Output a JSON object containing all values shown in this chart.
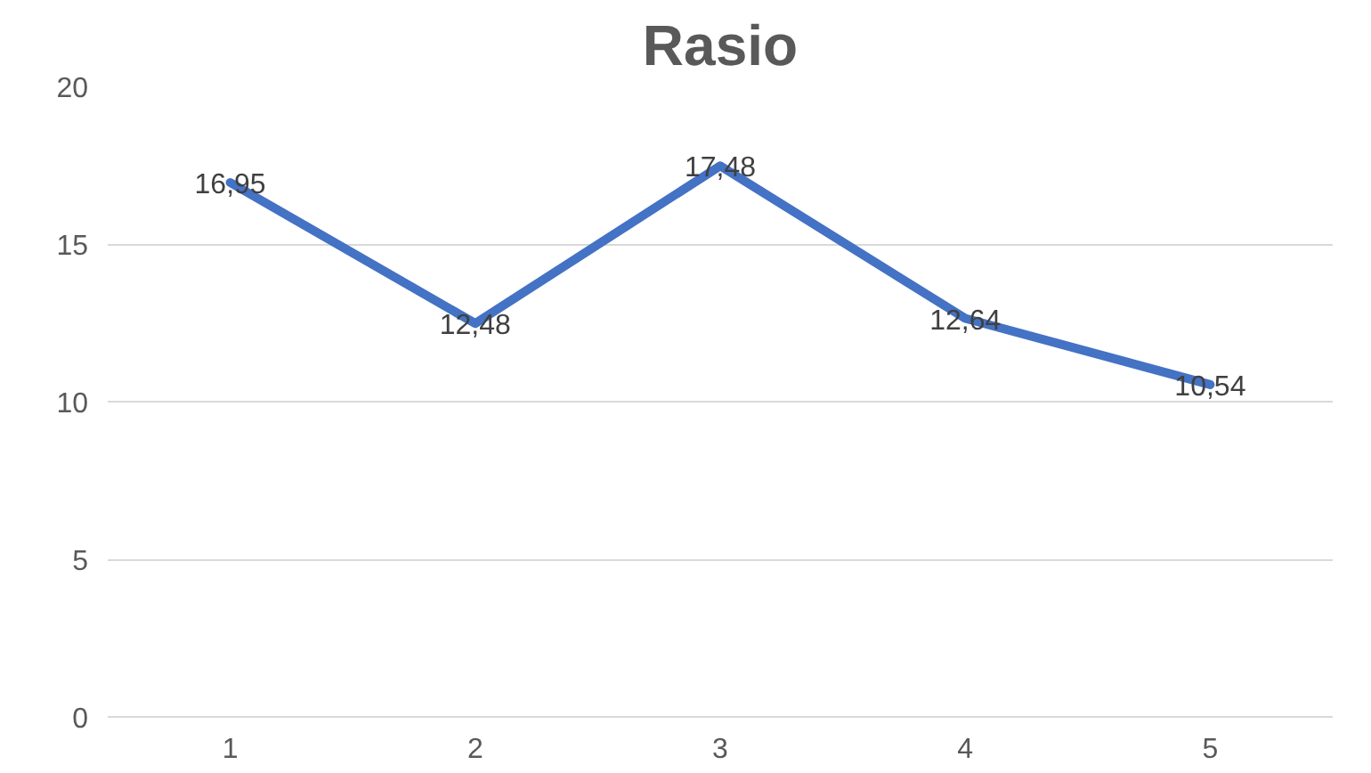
{
  "chart_data": {
    "type": "line",
    "title": "Rasio",
    "categories": [
      "1",
      "2",
      "3",
      "4",
      "5"
    ],
    "series": [
      {
        "color": "#4472c4",
        "values": [
          16.95,
          12.48,
          17.48,
          12.64,
          10.54
        ],
        "value_labels": [
          "16,95",
          "12,48",
          "17,48",
          "12,64",
          "10,54"
        ]
      }
    ],
    "ylim": [
      0,
      20
    ],
    "yticks": [
      0,
      5,
      10,
      15,
      20
    ],
    "grid": "y",
    "marker": "none",
    "line_style": "solid"
  }
}
